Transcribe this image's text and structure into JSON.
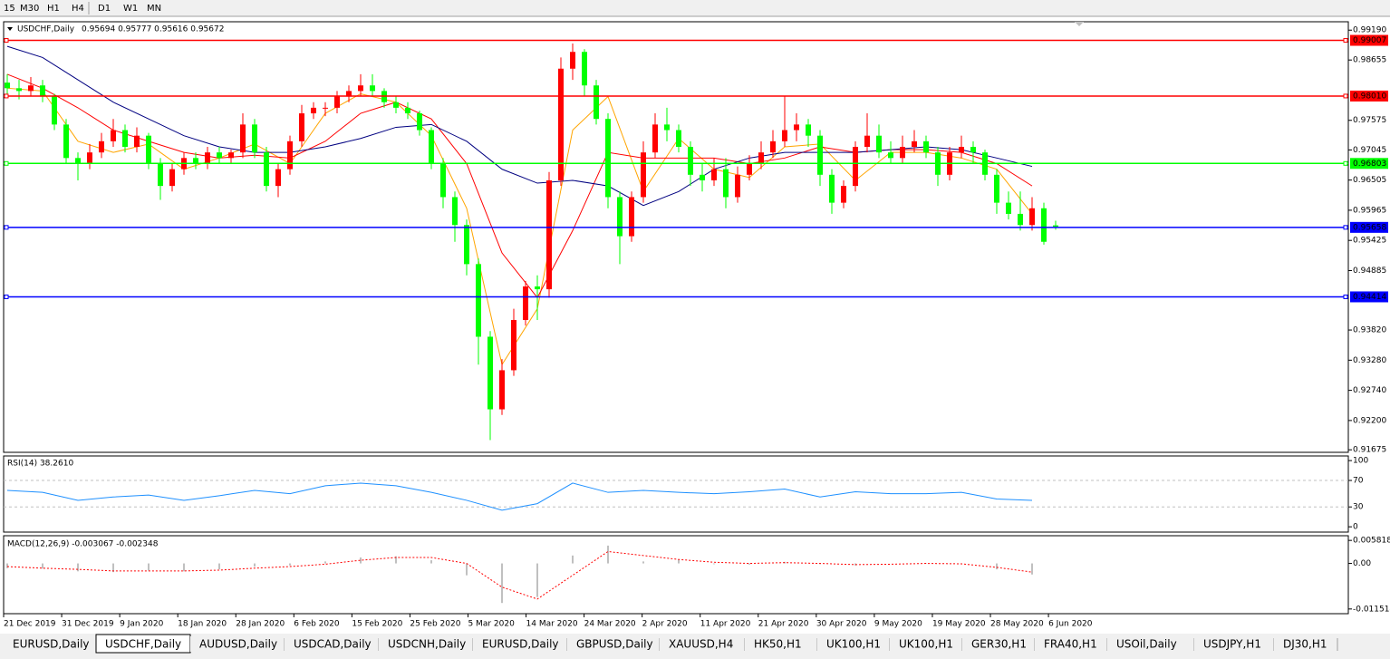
{
  "toolbar": {
    "buttons": [
      "15",
      "M30",
      "H1",
      "H4",
      "D1",
      "W1",
      "MN"
    ]
  },
  "chart_data": [
    {
      "type": "candlestick",
      "symbol": "USDCHF,Daily",
      "header_values": "0.95694 0.95777 0.95616 0.95672",
      "up_color": "#ff0000",
      "down_color": "#00ff00",
      "ylim": [
        0.9163,
        0.9934
      ],
      "yticks": [
        {
          "value": 0.9919,
          "label": "0.99190"
        },
        0.98655,
        0.97575,
        0.97045,
        0.96505,
        0.95965,
        0.95425,
        0.94885,
        {
          "value": 0.9382,
          "label": "0.93820"
        },
        {
          "value": 0.9328,
          "label": "0.93280"
        },
        {
          "value": 0.9274,
          "label": "0.92740"
        },
        {
          "value": 0.922,
          "label": "0.92200"
        },
        0.91675
      ],
      "levels": [
        {
          "value": 0.99007,
          "color": "#ff0000"
        },
        {
          "value": 0.9801,
          "label": "0.98010",
          "color": "#ff0000"
        },
        {
          "value": 0.96803,
          "color": "#00ff00"
        },
        {
          "value": 0.95658,
          "color": "#0000ff"
        },
        {
          "value": 0.94414,
          "color": "#0000ff"
        }
      ],
      "x_labels": [
        "21 Dec 2019",
        "31 Dec 2019",
        "9 Jan 2020",
        "18 Jan 2020",
        "28 Jan 2020",
        "6 Feb 2020",
        "15 Feb 2020",
        "25 Feb 2020",
        "5 Mar 2020",
        "14 Mar 2020",
        "24 Mar 2020",
        "2 Apr 2020",
        "11 Apr 2020",
        "21 Apr 2020",
        "30 Apr 2020",
        "9 May 2020",
        "19 May 2020",
        "28 May 2020",
        "6 Jun 2020"
      ],
      "candles": [
        [
          0.9825,
          0.984,
          0.98,
          0.9815
        ],
        [
          0.9815,
          0.983,
          0.9795,
          0.981
        ],
        [
          0.981,
          0.9835,
          0.98,
          0.982
        ],
        [
          0.982,
          0.983,
          0.979,
          0.98
        ],
        [
          0.98,
          0.9805,
          0.974,
          0.975
        ],
        [
          0.975,
          0.976,
          0.968,
          0.969
        ],
        [
          0.969,
          0.97,
          0.965,
          0.968
        ],
        [
          0.968,
          0.9715,
          0.967,
          0.97
        ],
        [
          0.97,
          0.9735,
          0.969,
          0.972
        ],
        [
          0.972,
          0.976,
          0.971,
          0.974
        ],
        [
          0.974,
          0.975,
          0.97,
          0.971
        ],
        [
          0.971,
          0.9745,
          0.97,
          0.973
        ],
        [
          0.973,
          0.9735,
          0.967,
          0.968
        ],
        [
          0.968,
          0.969,
          0.9615,
          0.964
        ],
        [
          0.964,
          0.968,
          0.963,
          0.967
        ],
        [
          0.967,
          0.97,
          0.966,
          0.969
        ],
        [
          0.969,
          0.97,
          0.967,
          0.968
        ],
        [
          0.968,
          0.971,
          0.967,
          0.97
        ],
        [
          0.97,
          0.971,
          0.968,
          0.969
        ],
        [
          0.969,
          0.9705,
          0.968,
          0.97
        ],
        [
          0.97,
          0.977,
          0.969,
          0.975
        ],
        [
          0.975,
          0.976,
          0.969,
          0.97
        ],
        [
          0.97,
          0.971,
          0.963,
          0.964
        ],
        [
          0.964,
          0.968,
          0.962,
          0.967
        ],
        [
          0.967,
          0.973,
          0.966,
          0.972
        ],
        [
          0.972,
          0.9785,
          0.971,
          0.977
        ],
        [
          0.977,
          0.979,
          0.976,
          0.978
        ],
        [
          0.978,
          0.979,
          0.9765,
          0.978
        ],
        [
          0.978,
          0.981,
          0.977,
          0.98
        ],
        [
          0.98,
          0.982,
          0.979,
          0.981
        ],
        [
          0.981,
          0.984,
          0.98,
          0.982
        ],
        [
          0.982,
          0.984,
          0.98,
          0.981
        ],
        [
          0.981,
          0.9815,
          0.978,
          0.979
        ],
        [
          0.979,
          0.98,
          0.977,
          0.978
        ],
        [
          0.978,
          0.979,
          0.976,
          0.977
        ],
        [
          0.977,
          0.9775,
          0.973,
          0.974
        ],
        [
          0.974,
          0.9745,
          0.967,
          0.968
        ],
        [
          0.968,
          0.969,
          0.96,
          0.962
        ],
        [
          0.962,
          0.963,
          0.954,
          0.957
        ],
        [
          0.957,
          0.958,
          0.948,
          0.95
        ],
        [
          0.95,
          0.951,
          0.932,
          0.937
        ],
        [
          0.937,
          0.938,
          0.9185,
          0.924
        ],
        [
          0.924,
          0.933,
          0.923,
          0.931
        ],
        [
          0.931,
          0.942,
          0.93,
          0.94
        ],
        [
          0.94,
          0.947,
          0.939,
          0.946
        ],
        [
          0.946,
          0.948,
          0.94,
          0.9455
        ],
        [
          0.9455,
          0.9665,
          0.944,
          0.965
        ],
        [
          0.965,
          0.987,
          0.964,
          0.985
        ],
        [
          0.985,
          0.9895,
          0.983,
          0.988
        ],
        [
          0.988,
          0.9885,
          0.98,
          0.982
        ],
        [
          0.982,
          0.983,
          0.975,
          0.976
        ],
        [
          0.976,
          0.977,
          0.96,
          0.962
        ],
        [
          0.962,
          0.963,
          0.95,
          0.955
        ],
        [
          0.955,
          0.963,
          0.954,
          0.962
        ],
        [
          0.962,
          0.972,
          0.961,
          0.97
        ],
        [
          0.97,
          0.977,
          0.969,
          0.975
        ],
        [
          0.975,
          0.978,
          0.972,
          0.974
        ],
        [
          0.974,
          0.975,
          0.97,
          0.971
        ],
        [
          0.971,
          0.972,
          0.964,
          0.966
        ],
        [
          0.966,
          0.968,
          0.963,
          0.965
        ],
        [
          0.965,
          0.969,
          0.964,
          0.967
        ],
        [
          0.967,
          0.969,
          0.96,
          0.962
        ],
        [
          0.962,
          0.9675,
          0.961,
          0.966
        ],
        [
          0.966,
          0.9695,
          0.965,
          0.968
        ],
        [
          0.968,
          0.972,
          0.967,
          0.97
        ],
        [
          0.97,
          0.974,
          0.969,
          0.972
        ],
        [
          0.972,
          0.98,
          0.971,
          0.974
        ],
        [
          0.974,
          0.977,
          0.972,
          0.975
        ],
        [
          0.975,
          0.976,
          0.971,
          0.973
        ],
        [
          0.973,
          0.974,
          0.964,
          0.966
        ],
        [
          0.966,
          0.967,
          0.959,
          0.961
        ],
        [
          0.961,
          0.965,
          0.96,
          0.964
        ],
        [
          0.964,
          0.972,
          0.963,
          0.971
        ],
        [
          0.971,
          0.977,
          0.97,
          0.973
        ],
        [
          0.973,
          0.975,
          0.969,
          0.97
        ],
        [
          0.97,
          0.972,
          0.968,
          0.969
        ],
        [
          0.969,
          0.973,
          0.968,
          0.971
        ],
        [
          0.971,
          0.974,
          0.97,
          0.972
        ],
        [
          0.972,
          0.973,
          0.969,
          0.97
        ],
        [
          0.97,
          0.971,
          0.964,
          0.966
        ],
        [
          0.966,
          0.971,
          0.965,
          0.97
        ],
        [
          0.97,
          0.973,
          0.969,
          0.971
        ],
        [
          0.971,
          0.972,
          0.968,
          0.97
        ],
        [
          0.97,
          0.9705,
          0.965,
          0.966
        ],
        [
          0.966,
          0.967,
          0.959,
          0.961
        ],
        [
          0.961,
          0.963,
          0.958,
          0.959
        ],
        [
          0.959,
          0.963,
          0.956,
          0.957
        ],
        [
          0.957,
          0.962,
          0.956,
          0.96
        ],
        [
          0.96,
          0.961,
          0.9535,
          0.954
        ],
        [
          0.95694,
          0.95777,
          0.95616,
          0.95672
        ]
      ],
      "indicator_x": [
        0,
        3,
        6,
        9,
        12,
        15,
        18,
        21,
        24,
        27,
        30,
        33,
        36,
        39,
        42,
        45,
        48,
        51,
        54,
        57,
        60,
        63,
        66,
        69,
        72,
        75,
        78,
        81,
        84,
        87
      ],
      "ma_lines": [
        {
          "color": "#ffa500",
          "values": [
            0.9815,
            0.981,
            0.972,
            0.97,
            0.9715,
            0.967,
            0.969,
            0.9715,
            0.968,
            0.977,
            0.9805,
            0.979,
            0.973,
            0.96,
            0.932,
            0.942,
            0.974,
            0.98,
            0.963,
            0.9725,
            0.967,
            0.9655,
            0.971,
            0.9715,
            0.965,
            0.97,
            0.97,
            0.969,
            0.967,
            0.959
          ]
        },
        {
          "color": "#ff0000",
          "values": [
            0.984,
            0.9815,
            0.978,
            0.974,
            0.972,
            0.97,
            0.969,
            0.9695,
            0.969,
            0.972,
            0.977,
            0.979,
            0.976,
            0.968,
            0.952,
            0.944,
            0.956,
            0.97,
            0.969,
            0.969,
            0.969,
            0.968,
            0.969,
            0.971,
            0.97,
            0.9705,
            0.9705,
            0.97,
            0.968,
            0.964
          ]
        },
        {
          "color": "#000080",
          "values": [
            0.989,
            0.987,
            0.983,
            0.979,
            0.976,
            0.973,
            0.971,
            0.97,
            0.97,
            0.971,
            0.9725,
            0.9745,
            0.975,
            0.972,
            0.967,
            0.9645,
            0.965,
            0.964,
            0.9605,
            0.963,
            0.967,
            0.969,
            0.97,
            0.97,
            0.97,
            0.9705,
            0.971,
            0.9705,
            0.969,
            0.9675
          ]
        }
      ]
    },
    {
      "type": "line",
      "title": "RSI(14) 38.2610",
      "color": "#1e90ff",
      "ylim": [
        -8,
        107
      ],
      "yticks": [
        100,
        70,
        30,
        0
      ],
      "levels": [
        70,
        30
      ],
      "values": [
        55,
        52,
        40,
        45,
        48,
        40,
        47,
        55,
        50,
        62,
        66,
        62,
        52,
        40,
        25,
        35,
        66,
        52,
        55,
        52,
        50,
        53,
        57,
        45,
        53,
        50,
        50,
        52,
        42,
        40
      ]
    },
    {
      "type": "macd",
      "title": "MACD(12,26,9) -0.003067 -0.002348",
      "hist_color": "#c0c0c0",
      "signal_color": "#ff0000",
      "ylim": [
        -0.0127,
        0.007
      ],
      "yticks": [
        0.005818,
        {
          "value": 0,
          "label": "0.00"
        },
        -0.011514
      ],
      "values": [
        -0.0012,
        -0.0013,
        -0.002,
        -0.0022,
        -0.0018,
        -0.002,
        -0.0015,
        -0.0008,
        -0.0005,
        0.0005,
        0.0015,
        0.0018,
        0.0008,
        -0.003,
        -0.01,
        -0.0085,
        0.002,
        0.0045,
        0.0005,
        0.001,
        -0.0002,
        -0.0003,
        0.0004,
        -0.0002,
        -0.0005,
        0,
        0.0001,
        -0.0002,
        -0.0015,
        -0.0028
      ],
      "signal": [
        -0.0008,
        -0.0012,
        -0.0015,
        -0.0019,
        -0.0019,
        -0.0019,
        -0.0017,
        -0.0012,
        -0.0008,
        -0.0002,
        0.0008,
        0.0015,
        0.0015,
        0,
        -0.006,
        -0.009,
        -0.003,
        0.003,
        0.002,
        0.001,
        0.0003,
        0,
        0.0002,
        0,
        -0.0003,
        -0.0002,
        0,
        -0.0001,
        -0.001,
        -0.0022
      ]
    }
  ],
  "tabs": {
    "items": [
      "EURUSD,Daily",
      "USDCHF,Daily",
      "AUDUSD,Daily",
      "USDCAD,Daily",
      "USDCNH,Daily",
      "EURUSD,Daily",
      "GBPUSD,Daily",
      "XAUUSD,H4",
      "HK50,H1",
      "UK100,H1",
      "UK100,H1",
      "GER30,H1",
      "FRA40,H1",
      "USOil,Daily",
      "USDJPY,H1",
      "DJ30,H1"
    ],
    "active": 1
  }
}
